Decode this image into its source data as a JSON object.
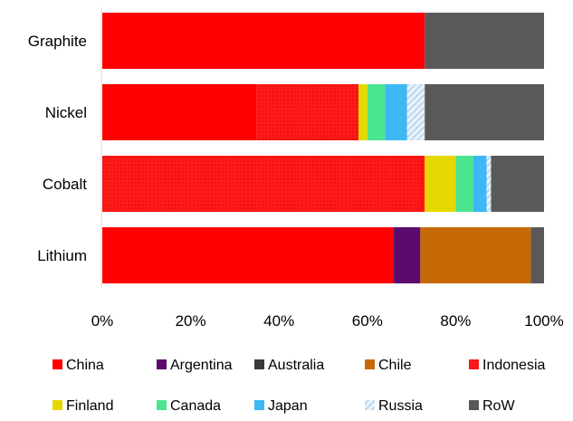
{
  "chart_data": {
    "type": "bar",
    "orientation": "horizontal",
    "stacked": true,
    "categories": [
      "Graphite",
      "Nickel",
      "Cobalt",
      "Lithium"
    ],
    "series": [
      {
        "name": "China",
        "color": "#ff0000",
        "values": [
          73,
          35,
          0,
          66
        ]
      },
      {
        "name": "Argentina",
        "color": "#5b0a6e",
        "values": [
          0,
          0,
          0,
          6
        ]
      },
      {
        "name": "Australia",
        "color": "#3a3a3a",
        "values": [
          0,
          0,
          0,
          0
        ]
      },
      {
        "name": "Chile",
        "color": "#c76a06",
        "values": [
          0,
          0,
          0,
          25
        ]
      },
      {
        "name": "Indonesia",
        "color": "#ff1a1a",
        "pattern": "dotted",
        "values": [
          0,
          23,
          73,
          0
        ]
      },
      {
        "name": "Finland",
        "color": "#e5d800",
        "values": [
          0,
          2,
          7,
          0
        ]
      },
      {
        "name": "Canada",
        "color": "#4be58e",
        "values": [
          0,
          4,
          4,
          0
        ]
      },
      {
        "name": "Japan",
        "color": "#3cb8f5",
        "values": [
          0,
          5,
          3,
          0
        ]
      },
      {
        "name": "Russia",
        "color": "#c5dcef",
        "pattern": "hatched",
        "values": [
          0,
          4,
          1,
          0
        ]
      },
      {
        "name": "RoW",
        "color": "#595959",
        "values": [
          27,
          27,
          12,
          3
        ]
      }
    ],
    "xlim": [
      0,
      100
    ],
    "xticks": [
      "0%",
      "20%",
      "40%",
      "60%",
      "80%",
      "100%"
    ],
    "grid": false,
    "legend": "bottom"
  }
}
